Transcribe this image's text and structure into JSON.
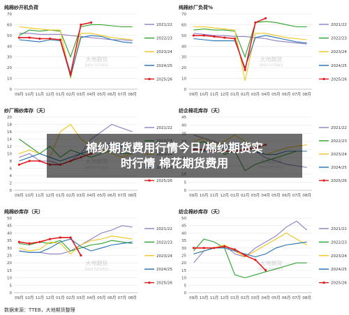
{
  "banner": {
    "line1": "棉纱期货费用行情今日/棉纱期货实",
    "line2": "时行情 棉花期货费用"
  },
  "source": "数据来源：TTEB，大地期货整理",
  "watermark": {
    "cn": "大地期货",
    "en": "DADI FUTURES"
  },
  "legend_entries": [
    "2021/22",
    "2022/23",
    "2023/24",
    "2024/25",
    "2025/26"
  ],
  "colors": {
    "2021/22": "#8e7cc3",
    "2022/23": "#2ca02c",
    "2023/24": "#f0c419",
    "2024/25": "#1f6fb2",
    "2025/26": "#e0191b"
  },
  "chart_data": [
    {
      "type": "line",
      "title": "纯棉纱开机负荷",
      "ylim": [
        0,
        70
      ],
      "yticks": [
        0,
        10,
        20,
        30,
        40,
        50,
        60,
        70
      ],
      "categories": [
        "09月",
        "10月",
        "11月",
        "12月",
        "01月",
        "02月",
        "03月",
        "04月",
        "05月",
        "06月",
        "07月",
        "08月"
      ],
      "series": [
        {
          "name": "2021/22",
          "values": [
            52,
            52,
            51,
            51,
            51,
            50,
            49,
            48,
            47,
            46,
            46,
            45
          ]
        },
        {
          "name": "2022/23",
          "values": [
            50,
            55,
            54,
            55,
            54,
            30,
            58,
            60,
            60,
            59,
            58,
            58
          ]
        },
        {
          "name": "2023/24",
          "values": [
            58,
            57,
            56,
            55,
            55,
            10,
            52,
            52,
            50,
            48,
            47,
            46
          ]
        },
        {
          "name": "2024/25",
          "values": [
            46,
            45,
            44,
            46,
            45,
            12,
            48,
            50,
            49,
            46,
            44,
            43
          ]
        },
        {
          "name": "2025/26",
          "values": [
            48,
            48,
            47,
            47,
            46,
            14,
            60,
            62,
            null,
            null,
            null,
            null
          ]
        }
      ]
    },
    {
      "type": "line",
      "title": "纯棉纱厂负荷%",
      "ylim": [
        0,
        70
      ],
      "yticks": [
        0,
        10,
        20,
        30,
        40,
        50,
        60,
        70
      ],
      "categories": [
        "09月",
        "10月",
        "11月",
        "12月",
        "01月",
        "02月",
        "03月",
        "04月",
        "05月",
        "06月",
        "07月",
        "08月"
      ],
      "series": [
        {
          "name": "2021/22",
          "values": [
            52,
            51,
            50,
            50,
            49,
            49,
            48,
            47,
            45,
            44,
            43,
            42
          ]
        },
        {
          "name": "2022/23",
          "values": [
            55,
            56,
            55,
            55,
            54,
            30,
            62,
            63,
            62,
            60,
            58,
            58
          ]
        },
        {
          "name": "2023/24",
          "values": [
            58,
            58,
            57,
            56,
            55,
            8,
            52,
            52,
            50,
            48,
            47,
            46
          ]
        },
        {
          "name": "2024/25",
          "values": [
            47,
            46,
            45,
            45,
            45,
            20,
            48,
            50,
            48,
            46,
            44,
            43
          ]
        },
        {
          "name": "2025/26",
          "values": [
            50,
            50,
            49,
            48,
            47,
            18,
            62,
            66,
            null,
            null,
            null,
            null
          ]
        }
      ]
    },
    {
      "type": "line",
      "title": "纱厂棉纱库存（天）",
      "ylim": [
        0,
        20
      ],
      "yticks": [
        0,
        2,
        4,
        6,
        8,
        10,
        12,
        14,
        16,
        18,
        20
      ],
      "categories": [
        "09月",
        "10月",
        "11月",
        "12月",
        "01月",
        "02月",
        "03月",
        "04月",
        "05月",
        "06月",
        "07月",
        "08月"
      ],
      "series": [
        {
          "name": "2021/22",
          "values": [
            9,
            10,
            8,
            8,
            7,
            8,
            10,
            14,
            16,
            18,
            17,
            16
          ]
        },
        {
          "name": "2022/23",
          "values": [
            14,
            12,
            10,
            12,
            9,
            11,
            10,
            9,
            10,
            11,
            10,
            10
          ]
        },
        {
          "name": "2023/24",
          "values": [
            10,
            11,
            10,
            9,
            16,
            18,
            14,
            12,
            11,
            10,
            9,
            10
          ]
        },
        {
          "name": "2024/25",
          "values": [
            8,
            9,
            10,
            9,
            8,
            9,
            10,
            11,
            12,
            13,
            12,
            10
          ]
        },
        {
          "name": "2025/26",
          "values": [
            7,
            8,
            8,
            7,
            7,
            8,
            9,
            10,
            null,
            null,
            null,
            null
          ]
        }
      ]
    },
    {
      "type": "line",
      "title": "纺企棉花库存（天）",
      "ylim": [
        0,
        45
      ],
      "yticks": [
        0,
        5,
        10,
        15,
        20,
        25,
        30,
        35,
        40,
        45
      ],
      "categories": [
        "09月",
        "10月",
        "11月",
        "12月",
        "01月",
        "02月",
        "03月",
        "04月",
        "05月",
        "06月",
        "07月",
        "08月"
      ],
      "series": [
        {
          "name": "2021/22",
          "values": [
            34,
            32,
            30,
            28,
            26,
            28,
            24,
            20,
            18,
            16,
            15,
            14
          ]
        },
        {
          "name": "2022/23",
          "values": [
            28,
            30,
            26,
            22,
            24,
            12,
            16,
            18,
            20,
            22,
            24,
            24
          ]
        },
        {
          "name": "2023/24",
          "values": [
            30,
            32,
            28,
            30,
            34,
            30,
            26,
            22,
            24,
            26,
            27,
            28
          ]
        },
        {
          "name": "2024/25",
          "values": [
            26,
            24,
            25,
            26,
            28,
            28,
            24,
            22,
            22,
            24,
            24,
            24
          ]
        },
        {
          "name": "2025/26",
          "values": [
            25,
            25,
            24,
            24,
            24,
            25,
            26,
            28,
            null,
            null,
            null,
            null
          ]
        }
      ]
    },
    {
      "type": "line",
      "title": "纯棉纱库存（天）",
      "ylim": [
        0,
        50
      ],
      "yticks": [
        0,
        5,
        10,
        15,
        20,
        25,
        30,
        35,
        40,
        45,
        50
      ],
      "categories": [
        "09月",
        "10月",
        "11月",
        "12月",
        "01月",
        "02月",
        "03月",
        "04月",
        "05月",
        "06月",
        "07月",
        "08月"
      ],
      "series": [
        {
          "name": "2021/22",
          "values": [
            28,
            27,
            27,
            26,
            26,
            28,
            32,
            36,
            40,
            42,
            45,
            44
          ]
        },
        {
          "name": "2022/23",
          "values": [
            33,
            32,
            34,
            33,
            35,
            28,
            30,
            32,
            33,
            35,
            34,
            33
          ]
        },
        {
          "name": "2023/24",
          "values": [
            30,
            28,
            29,
            34,
            33,
            26,
            32,
            35,
            36,
            38,
            37,
            36
          ]
        },
        {
          "name": "2024/25",
          "values": [
            28,
            27,
            27,
            30,
            34,
            36,
            31,
            28,
            30,
            32,
            33,
            34
          ]
        },
        {
          "name": "2025/26",
          "values": [
            34,
            33,
            34,
            36,
            37,
            37,
            25,
            null,
            null,
            null,
            null,
            null
          ]
        }
      ]
    },
    {
      "type": "line",
      "title": "纺企棉纱库存（天）",
      "ylim": [
        0,
        50
      ],
      "yticks": [
        0,
        5,
        10,
        15,
        20,
        25,
        30,
        35,
        40,
        45,
        50
      ],
      "categories": [
        "09月",
        "10月",
        "11月",
        "12月",
        "01月",
        "02月",
        "03月",
        "04月",
        "05月",
        "06月",
        "07月",
        "08月"
      ],
      "series": [
        {
          "name": "2021/22",
          "values": [
            20,
            28,
            30,
            32,
            26,
            24,
            30,
            34,
            38,
            44,
            48,
            42
          ]
        },
        {
          "name": "2022/23",
          "values": [
            28,
            36,
            34,
            30,
            12,
            10,
            12,
            14,
            16,
            18,
            20,
            20
          ]
        },
        {
          "name": "2023/24",
          "values": [
            26,
            28,
            30,
            32,
            28,
            24,
            28,
            32,
            36,
            40,
            36,
            32
          ]
        },
        {
          "name": "2024/25",
          "values": [
            26,
            28,
            30,
            30,
            28,
            26,
            24,
            26,
            30,
            32,
            33,
            34
          ]
        },
        {
          "name": "2025/26",
          "values": [
            30,
            30,
            30,
            31,
            29,
            25,
            22,
            15,
            null,
            null,
            null,
            null
          ]
        }
      ]
    }
  ]
}
